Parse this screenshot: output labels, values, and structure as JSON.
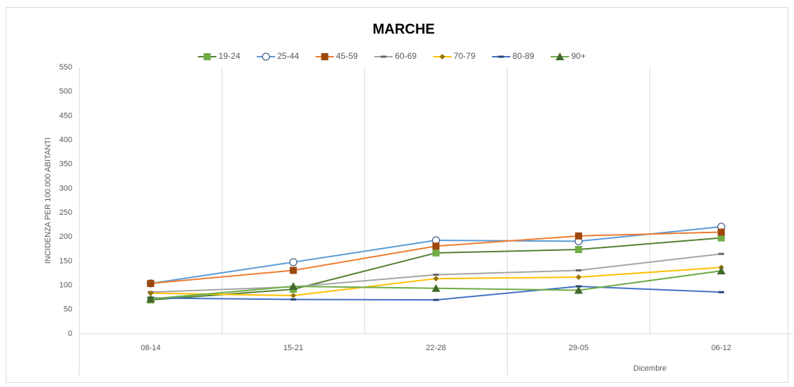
{
  "chart_data": {
    "type": "line",
    "title": "MARCHE",
    "ylabel": "INCIDENZA PER 100.000 ABITANTI",
    "categories": [
      "08-14",
      "15-21",
      "22-28",
      "29-05",
      "06-12"
    ],
    "category_group": "Dicembre",
    "ylim": [
      0,
      550
    ],
    "yticks": [
      0,
      50,
      100,
      150,
      200,
      250,
      300,
      350,
      400,
      450,
      500,
      550
    ],
    "grid": true,
    "legend": "top",
    "series": [
      {
        "name": "19-24",
        "color": "#548235",
        "marker_color": "#70ad47",
        "marker": "square",
        "values": [
          70,
          92,
          167,
          174,
          198
        ]
      },
      {
        "name": "25-44",
        "color": "#5b9bd5",
        "marker_color": "#264478",
        "marker": "circle",
        "values": [
          104,
          148,
          193,
          191,
          221
        ]
      },
      {
        "name": "45-59",
        "color": "#ed7d31",
        "marker_color": "#9e480e",
        "marker": "square",
        "values": [
          104,
          131,
          181,
          202,
          210
        ]
      },
      {
        "name": "60-69",
        "color": "#a5a5a5",
        "marker_color": "#636363",
        "marker": "dash",
        "values": [
          86,
          97,
          122,
          131,
          165
        ]
      },
      {
        "name": "70-79",
        "color": "#ffc000",
        "marker_color": "#997300",
        "marker": "diamond",
        "values": [
          84,
          79,
          114,
          117,
          137
        ]
      },
      {
        "name": "80-89",
        "color": "#4472c4",
        "marker_color": "#264478",
        "marker": "dash",
        "values": [
          74,
          71,
          70,
          98,
          86
        ]
      },
      {
        "name": "90+",
        "color": "#70ad47",
        "marker_color": "#43682b",
        "marker": "triangle",
        "values": [
          72,
          98,
          94,
          90,
          130
        ]
      }
    ]
  }
}
